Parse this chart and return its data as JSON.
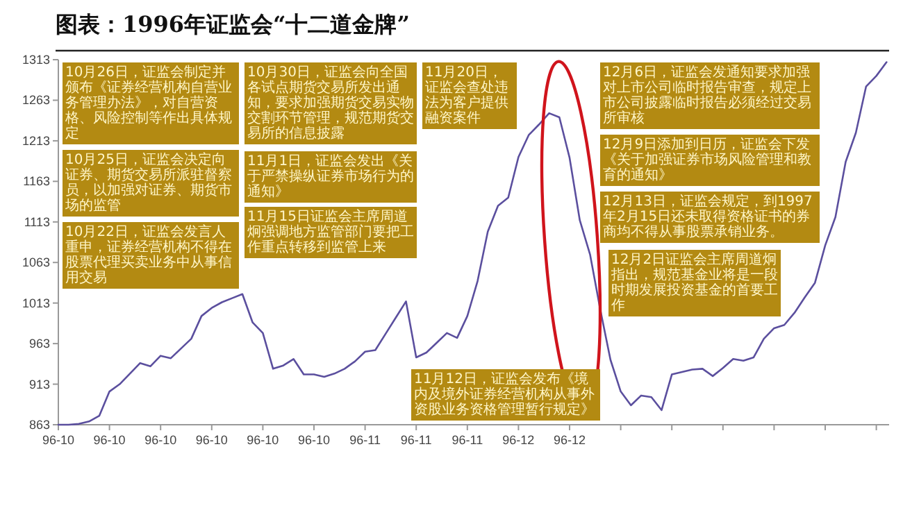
{
  "chart_data": {
    "type": "line",
    "title": "图表：1996年证监会“十二道金牌”",
    "categories": [
      "96-10",
      null,
      null,
      null,
      null,
      "96-10",
      null,
      null,
      null,
      null,
      "96-10",
      null,
      null,
      null,
      null,
      "96-10",
      null,
      null,
      null,
      null,
      "96-10",
      null,
      null,
      null,
      null,
      "96-10",
      null,
      null,
      null,
      null,
      "96-11",
      null,
      null,
      null,
      null,
      "96-11",
      null,
      null,
      null,
      null,
      "96-11",
      null,
      null,
      null,
      null,
      "96-12",
      null,
      null,
      null,
      null,
      "96-12",
      null,
      null,
      null,
      null,
      null,
      null,
      null,
      null,
      null,
      null,
      null,
      null,
      null,
      null,
      null,
      null,
      null,
      null,
      null,
      null,
      null,
      null,
      null,
      null,
      null,
      null,
      null,
      null,
      null,
      null,
      null
    ],
    "series": [
      {
        "color": "#5b4f9e",
        "values": [
          863,
          863,
          864,
          867,
          874,
          904,
          913,
          926,
          939,
          935,
          948,
          945,
          957,
          969,
          997,
          1007,
          1014,
          1019,
          1024,
          989,
          976,
          932,
          936,
          944,
          925,
          925,
          922,
          926,
          932,
          941,
          953,
          955,
          975,
          995,
          1015,
          946,
          952,
          964,
          976,
          970,
          997,
          1040,
          1101,
          1133,
          1143,
          1193,
          1220,
          1233,
          1247,
          1242,
          1192,
          1115,
          1073,
          1005,
          943,
          904,
          887,
          899,
          897,
          881,
          925,
          928,
          931,
          932,
          923,
          933,
          944,
          942,
          946,
          969,
          982,
          986,
          1001,
          1020,
          1038,
          1084,
          1119,
          1187,
          1223,
          1280,
          1293,
          1310
        ]
      }
    ],
    "ylim": [
      863,
      1313
    ],
    "yticks": [
      863,
      913,
      963,
      1013,
      1063,
      1113,
      1163,
      1213,
      1263,
      1313
    ],
    "annotations": [
      "10月22日，证监会发言人重申，证券经营机构不得在股票代理买卖业务中从事信用交易",
      "10月25日，证监会决定向证券、期货交易所派驻督察员，以加强对证券、期货市场的监管",
      "10月26日，证监会制定并颁布《证券经营机构自营业务管理办法》，对自营资格、风险控制等作出具体规定",
      "10月30日，证监会向全国各试点期货交易所发出通知，要求加强期货交易实物交割环节管理，规范期货交易所的信息披露",
      "11月1日，证监会发出《关于严禁操纵证券市场行为的通知》",
      "11月12日，证监会发布《境内及境外证券经营机构从事外资股业务资格管理暂行规定》",
      "11月15日证监会主席周道炯强调地方监管部门要把工作重点转移到监管上来",
      "11月20日，证监会查处违法为客户提供融资案件",
      "12月2日证监会主席周道炯指出，规范基金业将是一段时期发展投资基金的首要工作",
      "12月6日，证监会发通知要求加强对上市公司临时报告审查，规定上市公司披露临时报告必须经过交易所审核",
      "12月9日添加到日历，证监会下发《关于加强证券市场风险管理和教育的通知》",
      "12月13日，证监会规定，到1997年2月15日还未取得资格证书的券商均不得从事股票承销业务。"
    ]
  }
}
